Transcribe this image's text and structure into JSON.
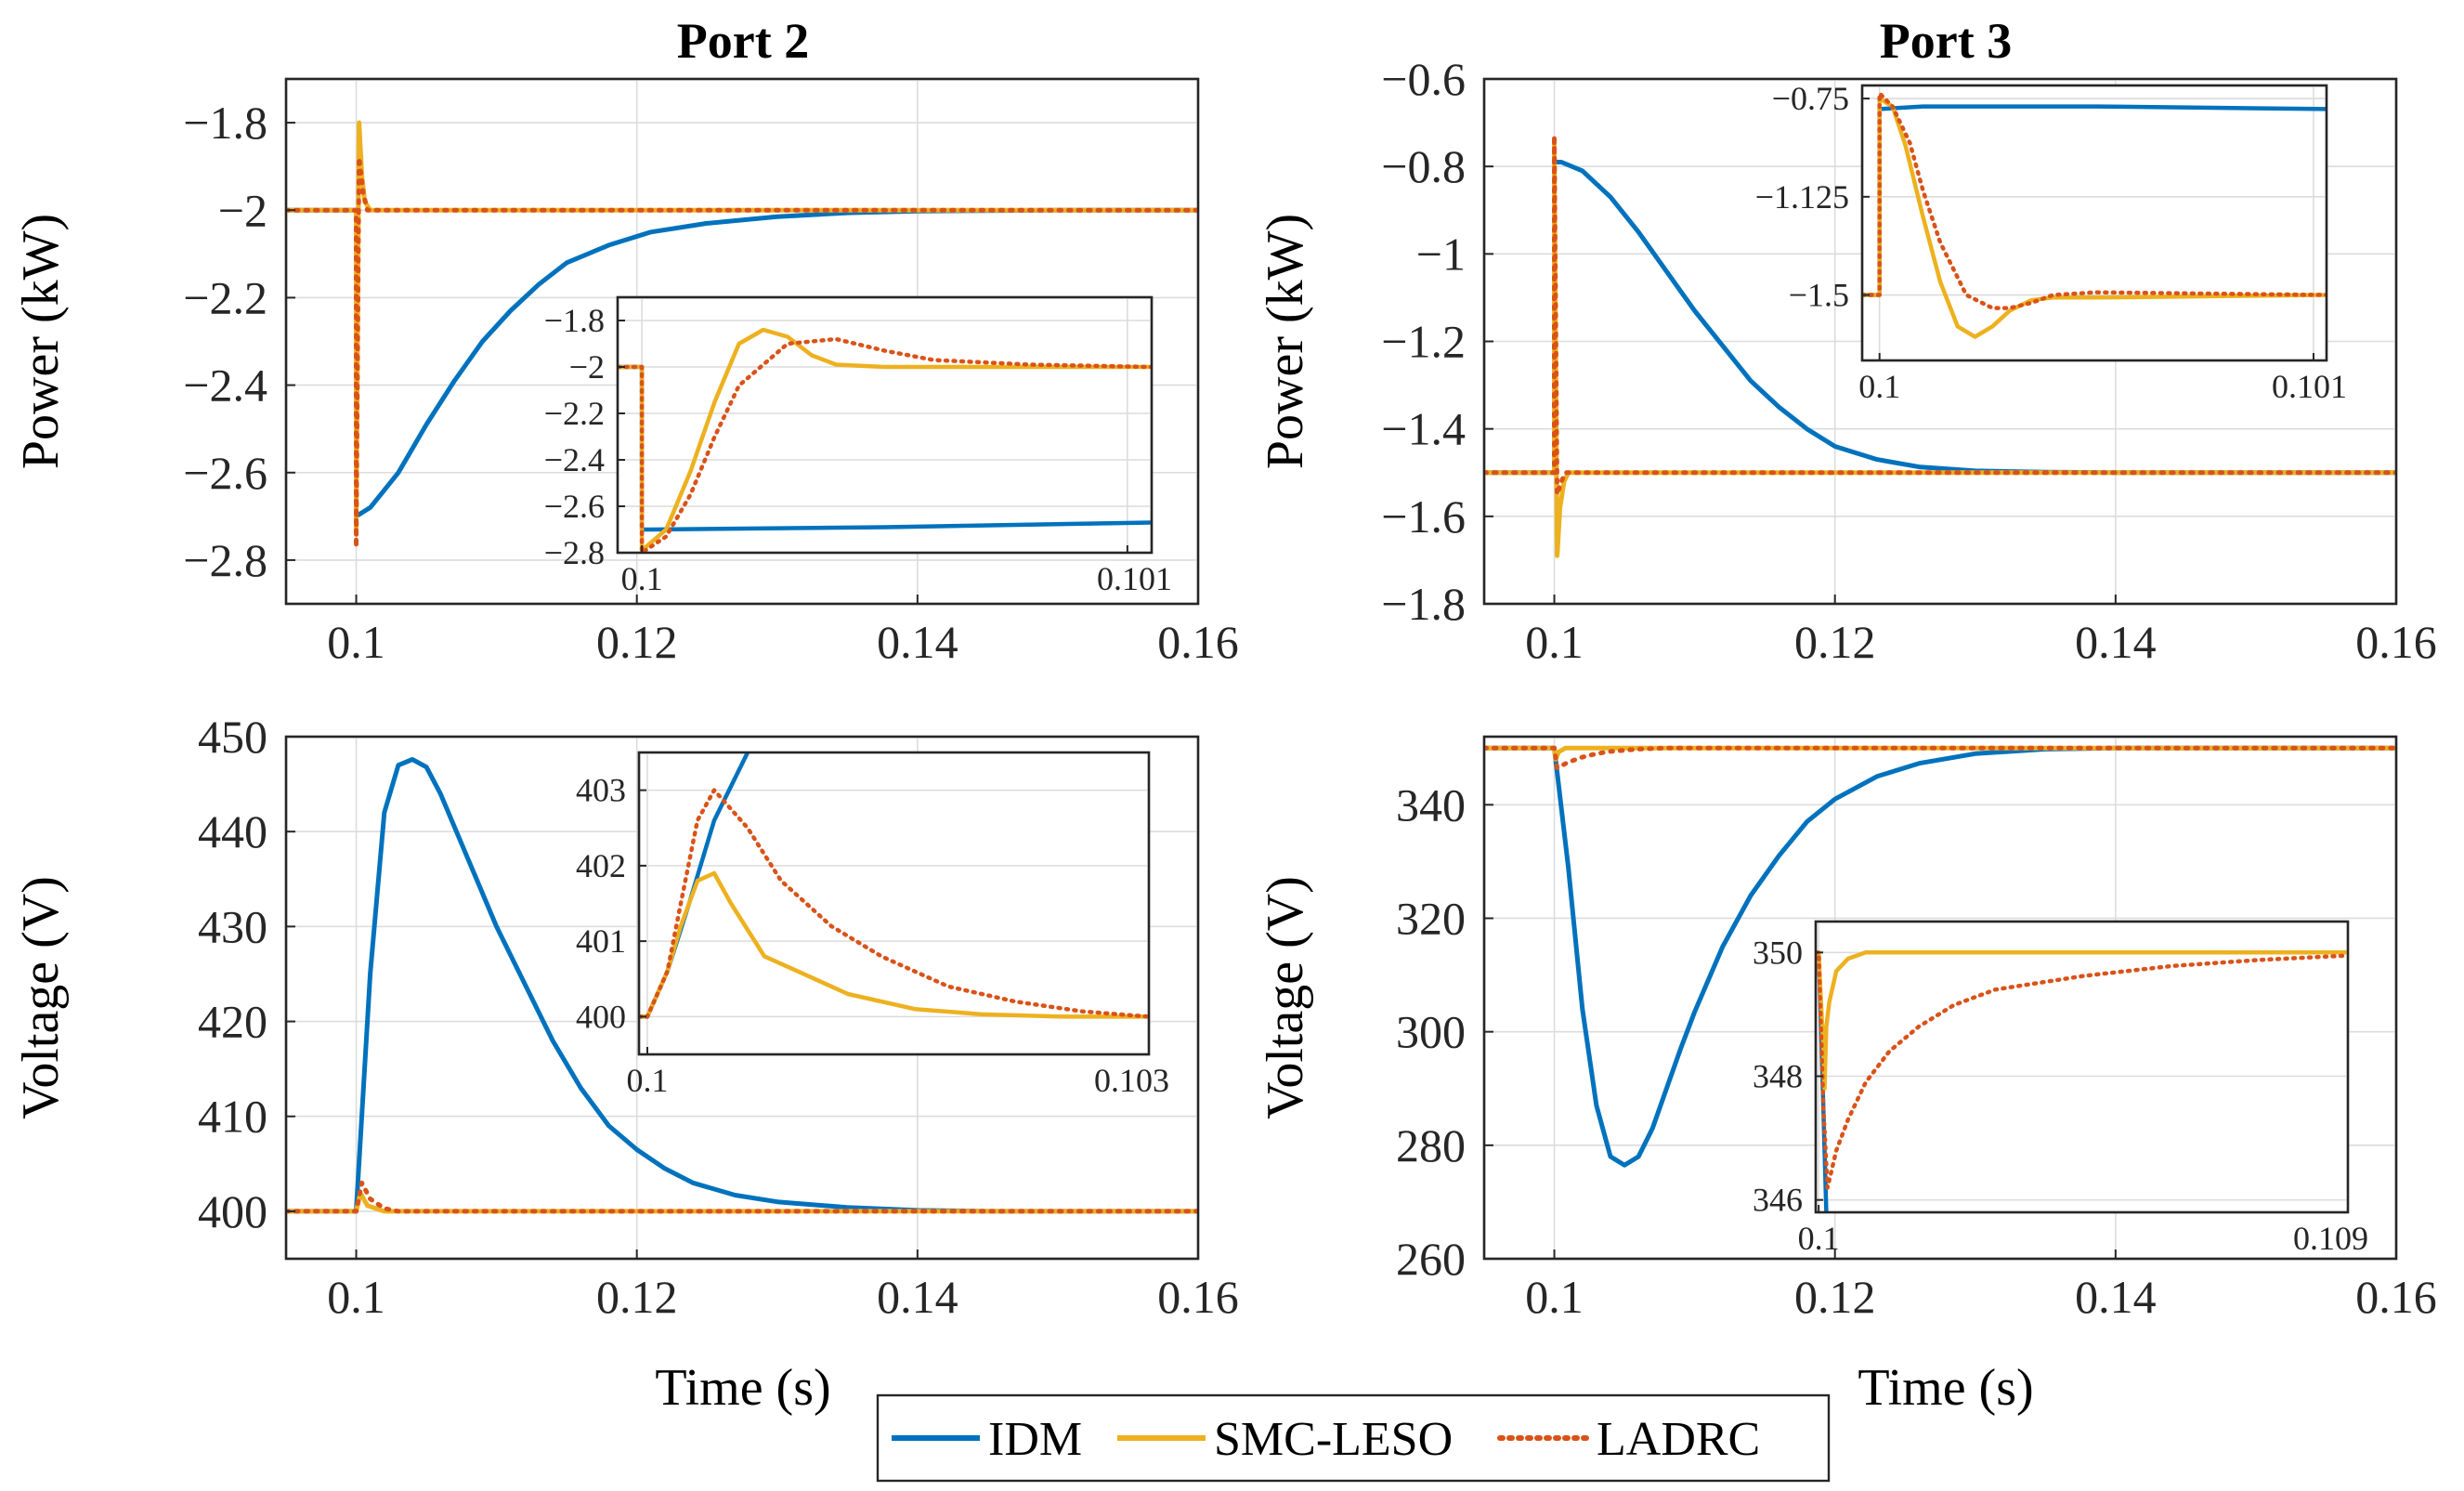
{
  "colors": {
    "idm": "#0072BD",
    "smc": "#EDB120",
    "ladrc": "#D95319"
  },
  "legend": [
    {
      "key": "idm",
      "label": "IDM",
      "style": "solid"
    },
    {
      "key": "smc",
      "label": "SMC-LESO",
      "style": "solid"
    },
    {
      "key": "ladrc",
      "label": "LADRC",
      "style": "dotted"
    }
  ],
  "chart_data": [
    {
      "id": "p2-power",
      "type": "line",
      "title": "Port 2",
      "ylabel": "Power (kW)",
      "xlabel": "",
      "xlim": [
        0.095,
        0.16
      ],
      "ylim": [
        -2.9,
        -1.7
      ],
      "grid": true,
      "xticks": [
        0.1,
        0.12,
        0.14,
        0.16
      ],
      "xtick_labels": [
        "0.1",
        "0.12",
        "0.14",
        "0.16"
      ],
      "yticks": [
        -2.8,
        -2.6,
        -2.4,
        -2.2,
        -2,
        -1.8
      ],
      "ytick_labels": [
        "−2.8",
        "−2.6",
        "−2.4",
        "−2.2",
        "−2",
        "−1.8"
      ],
      "series": [
        {
          "name": "IDM",
          "key": "idm",
          "x": [
            0.095,
            0.1,
            0.1,
            0.101,
            0.103,
            0.105,
            0.107,
            0.109,
            0.111,
            0.113,
            0.115,
            0.118,
            0.121,
            0.125,
            0.13,
            0.135,
            0.14,
            0.15,
            0.16
          ],
          "y": [
            -2,
            -2,
            -2.7,
            -2.68,
            -2.6,
            -2.49,
            -2.39,
            -2.3,
            -2.23,
            -2.17,
            -2.12,
            -2.08,
            -2.05,
            -2.03,
            -2.015,
            -2.006,
            -2.002,
            -2.0,
            -2.0
          ]
        },
        {
          "name": "SMC-LESO",
          "key": "smc",
          "x": [
            0.095,
            0.1,
            0.1,
            0.1002,
            0.1004,
            0.1006,
            0.101,
            0.102,
            0.16
          ],
          "y": [
            -2,
            -2,
            -2.74,
            -1.8,
            -1.92,
            -1.98,
            -2.0,
            -2.0,
            -2.0
          ]
        },
        {
          "name": "LADRC",
          "key": "ladrc",
          "x": [
            0.095,
            0.1,
            0.1,
            0.1002,
            0.1005,
            0.1008,
            0.101,
            0.102,
            0.16
          ],
          "y": [
            -2,
            -2,
            -2.77,
            -1.88,
            -1.96,
            -2.0,
            -2.0,
            -2.0,
            -2.0
          ]
        }
      ],
      "inset": {
        "xlim": [
          0.09995,
          0.10105
        ],
        "ylim": [
          -2.8,
          -1.7
        ],
        "xticks": [
          0.1,
          0.101
        ],
        "xtick_labels": [
          "0.1",
          "0.101"
        ],
        "yticks": [
          -2.8,
          -2.6,
          -2.4,
          -2.2,
          -2,
          -1.8
        ],
        "ytick_labels": [
          "−2.8",
          "−2.6",
          "−2.4",
          "−2.2",
          "−2",
          "−1.8"
        ],
        "series": [
          {
            "key": "idm",
            "x": [
              0.09995,
              0.1,
              0.1,
              0.10002,
              0.1005,
              0.10105
            ],
            "y": [
              -2,
              -2,
              -2.7,
              -2.7,
              -2.69,
              -2.67
            ]
          },
          {
            "key": "smc",
            "x": [
              0.09995,
              0.1,
              0.1,
              0.10005,
              0.1001,
              0.10015,
              0.1002,
              0.10025,
              0.1003,
              0.10035,
              0.1004,
              0.1005,
              0.10105
            ],
            "y": [
              -2,
              -2,
              -2.79,
              -2.7,
              -2.45,
              -2.15,
              -1.9,
              -1.84,
              -1.87,
              -1.95,
              -1.99,
              -2.0,
              -2.0
            ]
          },
          {
            "key": "ladrc",
            "x": [
              0.09995,
              0.1,
              0.1,
              0.10005,
              0.1001,
              0.10015,
              0.1002,
              0.1003,
              0.1004,
              0.1005,
              0.1006,
              0.1008,
              0.10105
            ],
            "y": [
              -2,
              -2,
              -2.8,
              -2.73,
              -2.55,
              -2.3,
              -2.08,
              -1.9,
              -1.88,
              -1.93,
              -1.97,
              -1.99,
              -2.0
            ]
          }
        ]
      }
    },
    {
      "id": "p3-power",
      "type": "line",
      "title": "Port 3",
      "ylabel": "Power (kW)",
      "xlabel": "",
      "xlim": [
        0.095,
        0.16
      ],
      "ylim": [
        -1.8,
        -0.6
      ],
      "grid": true,
      "xticks": [
        0.1,
        0.12,
        0.14,
        0.16
      ],
      "xtick_labels": [
        "0.1",
        "0.12",
        "0.14",
        "0.16"
      ],
      "yticks": [
        -1.8,
        -1.6,
        -1.4,
        -1.2,
        -1,
        -0.8,
        -0.6
      ],
      "ytick_labels": [
        "−1.8",
        "−1.6",
        "−1.4",
        "−1.2",
        "−1",
        "−0.8",
        "−0.6"
      ],
      "series": [
        {
          "name": "IDM",
          "key": "idm",
          "x": [
            0.095,
            0.1,
            0.1,
            0.1005,
            0.102,
            0.104,
            0.106,
            0.108,
            0.11,
            0.112,
            0.114,
            0.116,
            0.118,
            0.12,
            0.123,
            0.126,
            0.13,
            0.135,
            0.14,
            0.16
          ],
          "y": [
            -1.5,
            -1.5,
            -0.79,
            -0.79,
            -0.81,
            -0.87,
            -0.95,
            -1.04,
            -1.13,
            -1.21,
            -1.29,
            -1.35,
            -1.4,
            -1.44,
            -1.47,
            -1.487,
            -1.496,
            -1.499,
            -1.5,
            -1.5
          ]
        },
        {
          "name": "SMC-LESO",
          "key": "smc",
          "x": [
            0.095,
            0.1,
            0.1,
            0.1002,
            0.1004,
            0.1007,
            0.101,
            0.102,
            0.16
          ],
          "y": [
            -1.5,
            -1.5,
            -0.75,
            -1.69,
            -1.58,
            -1.52,
            -1.5,
            -1.5,
            -1.5
          ]
        },
        {
          "name": "LADRC",
          "key": "ladrc",
          "x": [
            0.095,
            0.1,
            0.1,
            0.1002,
            0.1005,
            0.1008,
            0.101,
            0.102,
            0.16
          ],
          "y": [
            -1.5,
            -1.5,
            -0.73,
            -1.55,
            -1.52,
            -1.5,
            -1.5,
            -1.5,
            -1.5
          ]
        }
      ],
      "inset": {
        "xlim": [
          0.09996,
          0.10103
        ],
        "ylim": [
          -1.75,
          -0.7
        ],
        "xticks": [
          0.1,
          0.101
        ],
        "xtick_labels": [
          "0.1",
          "0.101"
        ],
        "yticks": [
          -1.5,
          -1.125,
          -0.75
        ],
        "ytick_labels": [
          "−1.5",
          "−1.125",
          "−0.75"
        ],
        "series": [
          {
            "key": "idm",
            "x": [
              0.09996,
              0.1,
              0.1,
              0.1001,
              0.1005,
              0.10103
            ],
            "y": [
              -1.5,
              -1.5,
              -0.79,
              -0.78,
              -0.78,
              -0.79
            ]
          },
          {
            "key": "smc",
            "x": [
              0.09996,
              0.1,
              0.1,
              0.10003,
              0.10006,
              0.1001,
              0.10014,
              0.10018,
              0.10022,
              0.10026,
              0.1003,
              0.10035,
              0.1004,
              0.1005,
              0.10103
            ],
            "y": [
              -1.5,
              -1.5,
              -0.75,
              -0.78,
              -0.93,
              -1.2,
              -1.45,
              -1.62,
              -1.66,
              -1.62,
              -1.56,
              -1.52,
              -1.51,
              -1.51,
              -1.5
            ]
          },
          {
            "key": "ladrc",
            "x": [
              0.09996,
              0.1,
              0.1,
              0.10003,
              0.10007,
              0.1001,
              0.10014,
              0.1002,
              0.10026,
              0.1003,
              0.10035,
              0.1004,
              0.1005,
              0.10103
            ],
            "y": [
              -1.5,
              -1.5,
              -0.73,
              -0.78,
              -0.92,
              -1.1,
              -1.3,
              -1.5,
              -1.55,
              -1.55,
              -1.53,
              -1.5,
              -1.49,
              -1.5
            ]
          }
        ]
      }
    },
    {
      "id": "p2-voltage",
      "type": "line",
      "title": "",
      "ylabel": "Voltage (V)",
      "xlabel": "Time (s)",
      "xlim": [
        0.095,
        0.16
      ],
      "ylim": [
        395,
        450
      ],
      "grid": true,
      "xticks": [
        0.1,
        0.12,
        0.14,
        0.16
      ],
      "xtick_labels": [
        "0.1",
        "0.12",
        "0.14",
        "0.16"
      ],
      "yticks": [
        400,
        410,
        420,
        430,
        440,
        450
      ],
      "ytick_labels": [
        "400",
        "410",
        "420",
        "430",
        "440",
        "450"
      ],
      "series": [
        {
          "name": "IDM",
          "key": "idm",
          "x": [
            0.095,
            0.1,
            0.101,
            0.102,
            0.103,
            0.104,
            0.105,
            0.106,
            0.108,
            0.11,
            0.112,
            0.114,
            0.116,
            0.118,
            0.12,
            0.122,
            0.124,
            0.127,
            0.13,
            0.135,
            0.14,
            0.145,
            0.16
          ],
          "y": [
            400,
            400,
            425,
            442,
            447,
            447.6,
            446.8,
            444,
            437,
            430,
            424,
            418,
            413,
            409,
            406.5,
            404.5,
            403,
            401.7,
            401,
            400.4,
            400.1,
            400,
            400
          ]
        },
        {
          "name": "SMC-LESO",
          "key": "smc",
          "x": [
            0.095,
            0.1,
            0.1003,
            0.1008,
            0.102,
            0.16
          ],
          "y": [
            400,
            400,
            401.9,
            400.6,
            400,
            400
          ]
        },
        {
          "name": "LADRC",
          "key": "ladrc",
          "x": [
            0.095,
            0.1,
            0.1004,
            0.101,
            0.102,
            0.103,
            0.16
          ],
          "y": [
            400,
            400,
            403,
            401.3,
            400.3,
            400,
            400
          ]
        }
      ],
      "inset": {
        "xlim": [
          0.09995,
          0.103
        ],
        "ylim": [
          399.5,
          403.5
        ],
        "xticks": [
          0.1,
          0.103
        ],
        "xtick_labels": [
          "0.1",
          "0.103"
        ],
        "yticks": [
          400,
          401,
          402,
          403
        ],
        "ytick_labels": [
          "400",
          "401",
          "402",
          "403"
        ],
        "series": [
          {
            "key": "idm",
            "x": [
              0.09995,
              0.1,
              0.10012,
              0.10025,
              0.1004,
              0.1006
            ],
            "y": [
              400,
              400,
              400.6,
              401.5,
              402.6,
              403.5
            ]
          },
          {
            "key": "smc",
            "x": [
              0.09995,
              0.1,
              0.10012,
              0.1002,
              0.1003,
              0.1004,
              0.1005,
              0.1007,
              0.1009,
              0.1012,
              0.1016,
              0.102,
              0.1025,
              0.103
            ],
            "y": [
              400,
              400,
              400.6,
              401.2,
              401.8,
              401.9,
              401.5,
              400.8,
              400.6,
              400.3,
              400.1,
              400.03,
              400,
              400
            ]
          },
          {
            "key": "ladrc",
            "x": [
              0.09995,
              0.1,
              0.10012,
              0.1002,
              0.1003,
              0.1004,
              0.1006,
              0.1008,
              0.1011,
              0.1014,
              0.1018,
              0.1022,
              0.1026,
              0.103
            ],
            "y": [
              400,
              400,
              400.6,
              401.5,
              402.6,
              403,
              402.5,
              401.8,
              401.2,
              400.8,
              400.4,
              400.2,
              400.07,
              400
            ]
          }
        ]
      }
    },
    {
      "id": "p3-voltage",
      "type": "line",
      "title": "",
      "ylabel": "Voltage (V)",
      "xlabel": "Time (s)",
      "xlim": [
        0.095,
        0.16
      ],
      "ylim": [
        260,
        352
      ],
      "grid": true,
      "xticks": [
        0.1,
        0.12,
        0.14,
        0.16
      ],
      "xtick_labels": [
        "0.1",
        "0.12",
        "0.14",
        "0.16"
      ],
      "yticks": [
        260,
        280,
        300,
        320,
        340
      ],
      "ytick_labels": [
        "260",
        "280",
        "300",
        "320",
        "340"
      ],
      "series": [
        {
          "name": "IDM",
          "key": "idm",
          "x": [
            0.095,
            0.1,
            0.101,
            0.102,
            0.103,
            0.104,
            0.105,
            0.106,
            0.107,
            0.108,
            0.109,
            0.11,
            0.112,
            0.114,
            0.116,
            0.118,
            0.12,
            0.123,
            0.126,
            0.13,
            0.135,
            0.14,
            0.16
          ],
          "y": [
            350,
            350,
            329,
            304,
            287,
            278,
            276.5,
            278,
            283,
            290,
            297,
            303.5,
            315,
            324,
            331,
            337,
            341,
            345,
            347.3,
            349,
            349.8,
            350,
            350
          ]
        },
        {
          "name": "SMC-LESO",
          "key": "smc",
          "x": [
            0.095,
            0.1,
            0.1001,
            0.1003,
            0.1008,
            0.16
          ],
          "y": [
            350,
            350,
            348,
            349.3,
            350,
            350
          ]
        },
        {
          "name": "LADRC",
          "key": "ladrc",
          "x": [
            0.095,
            0.1,
            0.1002,
            0.101,
            0.102,
            0.103,
            0.104,
            0.106,
            0.108,
            0.16
          ],
          "y": [
            350,
            350,
            346.5,
            347.5,
            348.4,
            349,
            349.4,
            349.8,
            350,
            350
          ]
        }
      ],
      "inset": {
        "xlim": [
          0.09995,
          0.109
        ],
        "ylim": [
          345.8,
          350.5
        ],
        "xticks": [
          0.1,
          0.109
        ],
        "xtick_labels": [
          "0.1",
          "0.109"
        ],
        "yticks": [
          346,
          348,
          350
        ],
        "ytick_labels": [
          "346",
          "348",
          "350"
        ],
        "series": [
          {
            "key": "idm",
            "x": [
              0.09995,
              0.1,
              0.10005,
              0.1001,
              0.10013
            ],
            "y": [
              350,
              350,
              348.5,
              346.8,
              345.8
            ]
          },
          {
            "key": "smc",
            "x": [
              0.09995,
              0.1,
              0.10007,
              0.1001,
              0.10013,
              0.10018,
              0.1003,
              0.1005,
              0.1008,
              0.1012,
              0.109
            ],
            "y": [
              350,
              350,
              348.6,
              347.8,
              348.8,
              349.2,
              349.7,
              349.9,
              350,
              350,
              350
            ]
          },
          {
            "key": "ladrc",
            "x": [
              0.09995,
              0.1,
              0.10008,
              0.10015,
              0.1003,
              0.1005,
              0.1008,
              0.1012,
              0.1017,
              0.1023,
              0.103,
              0.1045,
              0.106,
              0.1075,
              0.109
            ],
            "y": [
              350,
              350,
              347.5,
              346.2,
              346.8,
              347.3,
              347.9,
              348.4,
              348.8,
              349.15,
              349.4,
              349.62,
              349.78,
              349.88,
              349.95
            ]
          }
        ]
      }
    }
  ]
}
